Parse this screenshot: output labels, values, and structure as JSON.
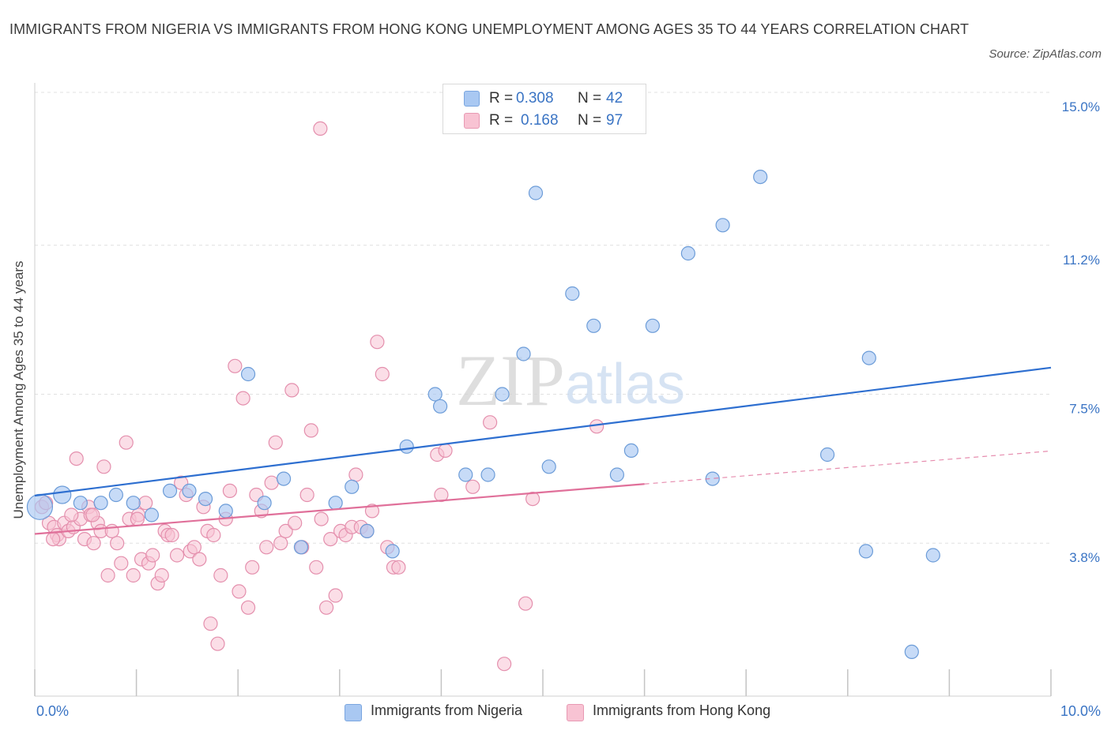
{
  "title": "IMMIGRANTS FROM NIGERIA VS IMMIGRANTS FROM HONG KONG UNEMPLOYMENT AMONG AGES 35 TO 44 YEARS CORRELATION CHART",
  "source": "Source: ZipAtlas.com",
  "watermark": "ZIPatlas",
  "stats": [
    {
      "r_label": "R =",
      "r_value": "0.308",
      "n_label": "N =",
      "n_value": "42",
      "color": "#a9c8f2",
      "border": "#7aa6e0"
    },
    {
      "r_label": "R =",
      "r_value": "0.168",
      "n_label": "N =",
      "n_value": "97",
      "color": "#f8c3d3",
      "border": "#e899b3"
    }
  ],
  "legend": [
    {
      "label": "Immigrants from Nigeria",
      "color": "#a9c8f2",
      "border": "#7aa6e0"
    },
    {
      "label": "Immigrants from Hong Kong",
      "color": "#f8c3d3",
      "border": "#e899b3"
    }
  ],
  "colors": {
    "nigeria_fill": "#a9c8f2",
    "nigeria_stroke": "#6c9cd8",
    "nigeria_line": "#2e6fd0",
    "hongkong_fill": "#f8c3d3",
    "hongkong_stroke": "#e48fad",
    "hongkong_line": "#e0709a",
    "axis_text": "#3a74c4",
    "grid": "#e0e0e0"
  },
  "chart_data": {
    "type": "scatter",
    "title": "IMMIGRANTS FROM NIGERIA VS IMMIGRANTS FROM HONG KONG UNEMPLOYMENT AMONG AGES 35 TO 44 YEARS CORRELATION CHART",
    "xlabel": "",
    "ylabel": "Unemployment Among Ages 35 to 44 years",
    "xlim": [
      0,
      10
    ],
    "ylim": [
      0,
      15
    ],
    "x_tick_labels": [
      "0.0%",
      "10.0%"
    ],
    "y_ticks": [
      3.8,
      7.5,
      11.2,
      15.0
    ],
    "y_tick_labels": [
      "3.8%",
      "7.5%",
      "11.2%",
      "15.0%"
    ],
    "grid": true,
    "series": [
      {
        "name": "Immigrants from Nigeria",
        "points": [
          [
            0.05,
            4.7
          ],
          [
            0.27,
            5.0
          ],
          [
            0.45,
            4.8
          ],
          [
            0.65,
            4.8
          ],
          [
            0.8,
            5.0
          ],
          [
            0.97,
            4.8
          ],
          [
            1.15,
            4.5
          ],
          [
            1.33,
            5.1
          ],
          [
            1.52,
            5.1
          ],
          [
            1.68,
            4.9
          ],
          [
            1.88,
            4.6
          ],
          [
            2.1,
            8.0
          ],
          [
            2.26,
            4.8
          ],
          [
            2.45,
            5.4
          ],
          [
            2.62,
            3.7
          ],
          [
            2.96,
            4.8
          ],
          [
            3.12,
            5.2
          ],
          [
            3.27,
            4.1
          ],
          [
            3.52,
            3.6
          ],
          [
            3.66,
            6.2
          ],
          [
            3.94,
            7.5
          ],
          [
            3.99,
            7.2
          ],
          [
            4.24,
            5.5
          ],
          [
            4.46,
            5.5
          ],
          [
            4.6,
            7.5
          ],
          [
            4.81,
            8.5
          ],
          [
            4.93,
            12.5
          ],
          [
            5.06,
            5.7
          ],
          [
            5.29,
            10.0
          ],
          [
            5.5,
            9.2
          ],
          [
            5.73,
            5.5
          ],
          [
            5.87,
            6.1
          ],
          [
            6.08,
            9.2
          ],
          [
            6.43,
            11.0
          ],
          [
            6.67,
            5.4
          ],
          [
            6.77,
            11.7
          ],
          [
            7.14,
            12.9
          ],
          [
            7.8,
            6.0
          ],
          [
            8.21,
            8.4
          ],
          [
            8.18,
            3.6
          ],
          [
            8.63,
            1.1
          ],
          [
            8.84,
            3.5
          ]
        ],
        "trend": {
          "x": [
            0,
            10
          ],
          "y": [
            4.98,
            8.16
          ]
        }
      },
      {
        "name": "Immigrants from Hong Kong",
        "points": [
          [
            0.07,
            4.7
          ],
          [
            0.11,
            4.8
          ],
          [
            0.14,
            4.3
          ],
          [
            0.19,
            4.2
          ],
          [
            0.22,
            4.0
          ],
          [
            0.24,
            3.9
          ],
          [
            0.29,
            4.3
          ],
          [
            0.33,
            4.1
          ],
          [
            0.38,
            4.2
          ],
          [
            0.41,
            5.9
          ],
          [
            0.45,
            4.4
          ],
          [
            0.49,
            3.9
          ],
          [
            0.53,
            4.7
          ],
          [
            0.55,
            4.5
          ],
          [
            0.58,
            3.8
          ],
          [
            0.62,
            4.3
          ],
          [
            0.65,
            4.1
          ],
          [
            0.68,
            5.7
          ],
          [
            0.72,
            3.0
          ],
          [
            0.76,
            4.1
          ],
          [
            0.81,
            3.8
          ],
          [
            0.85,
            3.3
          ],
          [
            0.9,
            6.3
          ],
          [
            0.93,
            4.4
          ],
          [
            0.97,
            3.0
          ],
          [
            1.02,
            4.5
          ],
          [
            1.05,
            3.4
          ],
          [
            1.09,
            4.8
          ],
          [
            1.12,
            3.3
          ],
          [
            1.16,
            3.5
          ],
          [
            1.21,
            2.8
          ],
          [
            1.25,
            3.0
          ],
          [
            1.28,
            4.1
          ],
          [
            1.31,
            4.0
          ],
          [
            1.35,
            4.0
          ],
          [
            1.4,
            3.5
          ],
          [
            1.44,
            5.3
          ],
          [
            1.49,
            5.0
          ],
          [
            1.53,
            3.6
          ],
          [
            1.57,
            3.7
          ],
          [
            1.62,
            3.4
          ],
          [
            1.66,
            4.7
          ],
          [
            1.7,
            4.1
          ],
          [
            1.73,
            1.8
          ],
          [
            1.76,
            4.0
          ],
          [
            1.8,
            1.3
          ],
          [
            1.83,
            3.0
          ],
          [
            1.88,
            4.4
          ],
          [
            1.92,
            5.1
          ],
          [
            1.97,
            8.2
          ],
          [
            2.01,
            2.6
          ],
          [
            2.05,
            7.4
          ],
          [
            2.1,
            2.2
          ],
          [
            2.14,
            3.2
          ],
          [
            2.18,
            5.0
          ],
          [
            2.23,
            4.6
          ],
          [
            2.28,
            3.7
          ],
          [
            2.33,
            5.3
          ],
          [
            2.37,
            6.3
          ],
          [
            2.42,
            3.8
          ],
          [
            2.47,
            4.1
          ],
          [
            2.53,
            7.6
          ],
          [
            2.56,
            4.3
          ],
          [
            2.63,
            3.7
          ],
          [
            2.68,
            5.0
          ],
          [
            2.72,
            6.6
          ],
          [
            2.77,
            3.2
          ],
          [
            2.82,
            4.4
          ],
          [
            2.87,
            2.2
          ],
          [
            2.91,
            3.9
          ],
          [
            2.96,
            2.5
          ],
          [
            3.01,
            4.1
          ],
          [
            3.06,
            4.0
          ],
          [
            3.12,
            4.2
          ],
          [
            3.16,
            5.5
          ],
          [
            3.21,
            4.2
          ],
          [
            3.27,
            4.1
          ],
          [
            3.32,
            4.6
          ],
          [
            3.37,
            8.8
          ],
          [
            3.42,
            8.0
          ],
          [
            3.47,
            3.7
          ],
          [
            3.53,
            3.2
          ],
          [
            3.58,
            3.2
          ],
          [
            3.96,
            6.0
          ],
          [
            4.0,
            5.0
          ],
          [
            4.04,
            6.1
          ],
          [
            4.31,
            5.2
          ],
          [
            4.48,
            6.8
          ],
          [
            4.62,
            0.8
          ],
          [
            4.83,
            2.3
          ],
          [
            4.9,
            4.9
          ],
          [
            5.53,
            6.7
          ],
          [
            2.81,
            14.1
          ],
          [
            0.18,
            3.9
          ],
          [
            0.36,
            4.5
          ],
          [
            0.57,
            4.5
          ],
          [
            1.01,
            4.4
          ]
        ],
        "trend": {
          "x": [
            0,
            6.0
          ],
          "y": [
            4.03,
            5.27
          ]
        },
        "trend_extension": {
          "x": [
            6.0,
            10
          ],
          "y": [
            5.27,
            6.09
          ]
        }
      }
    ]
  }
}
